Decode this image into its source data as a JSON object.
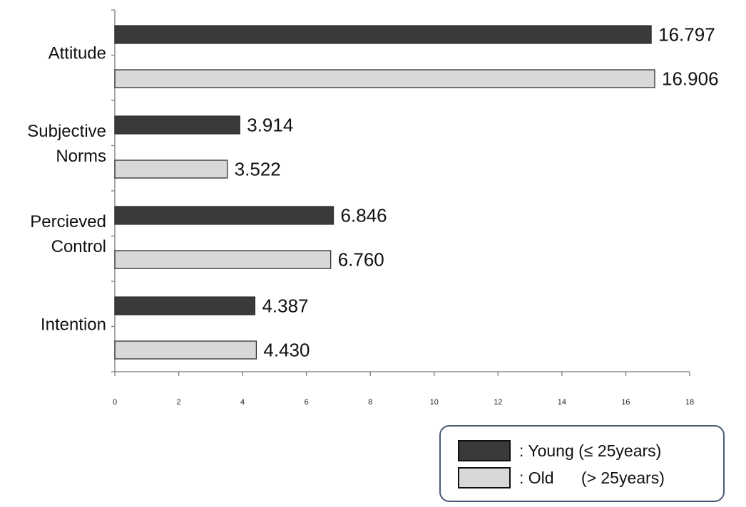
{
  "chart_data": {
    "type": "bar",
    "orientation": "horizontal",
    "categories": [
      [
        "Attitude"
      ],
      [
        "Subjective",
        "Norms"
      ],
      [
        "Percieved",
        "Control"
      ],
      [
        "Intention"
      ]
    ],
    "series": [
      {
        "name": ": Young (≤ 25years)",
        "color": "#3a3a3a",
        "values": [
          16.797,
          3.914,
          6.846,
          4.387
        ],
        "labels": [
          "16.797",
          "3.914",
          "6.846",
          "4.387"
        ]
      },
      {
        "name": ": Old      (> 25years)",
        "color": "#d8d8d8",
        "values": [
          16.906,
          3.522,
          6.76,
          4.43
        ],
        "labels": [
          "16.906",
          "3.522",
          "6.760",
          "4.430"
        ]
      }
    ],
    "xlim": [
      0,
      18
    ],
    "xticks": [
      "0",
      "2",
      "4",
      "6",
      "8",
      "10",
      "12",
      "14",
      "16",
      "18"
    ],
    "grid": false,
    "legend_position": "bottom-right"
  }
}
